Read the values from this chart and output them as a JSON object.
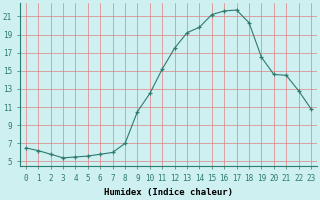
{
  "x": [
    0,
    1,
    2,
    3,
    4,
    5,
    6,
    7,
    8,
    9,
    10,
    11,
    12,
    13,
    14,
    15,
    16,
    17,
    18,
    19,
    20,
    21,
    22,
    23
  ],
  "y": [
    6.5,
    6.2,
    5.8,
    5.4,
    5.5,
    5.6,
    5.8,
    6.0,
    7.0,
    10.5,
    12.5,
    15.2,
    17.5,
    19.2,
    19.8,
    21.2,
    21.6,
    21.7,
    20.3,
    16.5,
    14.6,
    14.5,
    12.8,
    10.8
  ],
  "xlabel": "Humidex (Indice chaleur)",
  "xlim": [
    -0.5,
    23.5
  ],
  "ylim": [
    4.5,
    22.5
  ],
  "yticks": [
    5,
    7,
    9,
    11,
    13,
    15,
    17,
    19,
    21
  ],
  "xtick_labels": [
    "0",
    "1",
    "2",
    "3",
    "4",
    "5",
    "6",
    "7",
    "8",
    "9",
    "10",
    "11",
    "12",
    "13",
    "14",
    "15",
    "16",
    "17",
    "18",
    "19",
    "20",
    "21",
    "22",
    "23"
  ],
  "line_color": "#2d7a6e",
  "marker": "+",
  "bg_color": "#cef0f0",
  "grid_color": "#e08080",
  "grid_color2": "#c8b8b8",
  "tick_fontsize": 5.5,
  "label_fontsize": 6.5
}
